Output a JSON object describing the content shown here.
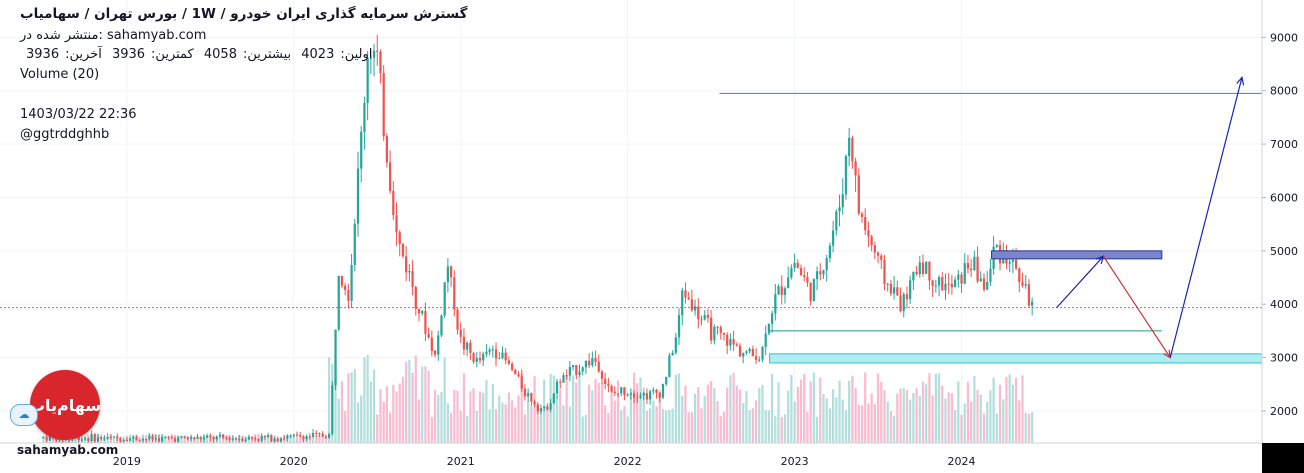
{
  "header": {
    "title": "گسترش سرمایه گذاری ایران خودرو / 1W / بورس تهران / سهامیاب",
    "published": "منتشر شده در: sahamyab.com",
    "ohlc": {
      "open_label": "اولین:",
      "open": "4023",
      "high_label": "بیشترین:",
      "high": "4058",
      "low_label": "کمترین:",
      "low": "3936",
      "close_label": "آخرین:",
      "close": "3936"
    },
    "volume_label": "Volume (20)",
    "timestamp": "1403/03/22 22:36",
    "user": "@ggtrddghhb"
  },
  "branding": {
    "logo_text": "سهام‌یاب",
    "watermark": "sahamyab.com"
  },
  "colors": {
    "up": "#26a69a",
    "down": "#ef5350",
    "up_volume": "#b2dfdb",
    "down_volume": "#f8bbd0",
    "annotation_line": "#1b9c85",
    "zone_blue": "#7986cb",
    "zone_cyan": "#b2ebf2",
    "arrow_blue": "#1a23b5",
    "arrow_red": "#d32f2f",
    "price_tag": "#ef5350"
  },
  "chart_data": {
    "type": "candlestick",
    "interval": "1W",
    "yaxis": {
      "ticks": [
        2000,
        3000,
        4000,
        5000,
        6000,
        7000,
        8000,
        9000
      ],
      "range": [
        1400,
        9700
      ],
      "side": "right"
    },
    "xaxis": {
      "ticks": [
        "2019",
        "2020",
        "2021",
        "2022",
        "2023",
        "2024"
      ],
      "tick_dates": [
        2019.0,
        2020.0,
        2021.0,
        2022.0,
        2023.0,
        2024.0
      ],
      "range": [
        2018.24,
        2025.8
      ]
    },
    "grid": true,
    "last_price": 3936,
    "series": [
      {
        "name": "price",
        "points": [
          {
            "x": 2018.5,
            "y": 1500
          },
          {
            "x": 2019.2,
            "y": 1480
          },
          {
            "x": 2019.9,
            "y": 1500
          },
          {
            "x": 2020.22,
            "y": 1550
          },
          {
            "x": 2020.23,
            "y": 2400
          },
          {
            "x": 2020.27,
            "y": 4800
          },
          {
            "x": 2020.33,
            "y": 4200
          },
          {
            "x": 2020.4,
            "y": 7000
          },
          {
            "x": 2020.45,
            "y": 9000
          },
          {
            "x": 2020.5,
            "y": 8500
          },
          {
            "x": 2020.55,
            "y": 7000
          },
          {
            "x": 2020.62,
            "y": 5200
          },
          {
            "x": 2020.7,
            "y": 4500
          },
          {
            "x": 2020.78,
            "y": 3600
          },
          {
            "x": 2020.85,
            "y": 3000
          },
          {
            "x": 2020.92,
            "y": 4800
          },
          {
            "x": 2021.0,
            "y": 3300
          },
          {
            "x": 2021.1,
            "y": 2900
          },
          {
            "x": 2021.2,
            "y": 3200
          },
          {
            "x": 2021.3,
            "y": 2800
          },
          {
            "x": 2021.4,
            "y": 2300
          },
          {
            "x": 2021.5,
            "y": 2000
          },
          {
            "x": 2021.6,
            "y": 2600
          },
          {
            "x": 2021.7,
            "y": 2800
          },
          {
            "x": 2021.8,
            "y": 3000
          },
          {
            "x": 2021.9,
            "y": 2300
          },
          {
            "x": 2022.0,
            "y": 2400
          },
          {
            "x": 2022.1,
            "y": 2300
          },
          {
            "x": 2022.2,
            "y": 2350
          },
          {
            "x": 2022.3,
            "y": 3500
          },
          {
            "x": 2022.33,
            "y": 4300
          },
          {
            "x": 2022.42,
            "y": 3800
          },
          {
            "x": 2022.5,
            "y": 3500
          },
          {
            "x": 2022.6,
            "y": 3300
          },
          {
            "x": 2022.7,
            "y": 3100
          },
          {
            "x": 2022.8,
            "y": 3000
          },
          {
            "x": 2022.83,
            "y": 3600
          },
          {
            "x": 2022.9,
            "y": 4200
          },
          {
            "x": 2023.0,
            "y": 4800
          },
          {
            "x": 2023.1,
            "y": 4200
          },
          {
            "x": 2023.2,
            "y": 5000
          },
          {
            "x": 2023.28,
            "y": 6000
          },
          {
            "x": 2023.33,
            "y": 7300
          },
          {
            "x": 2023.38,
            "y": 5800
          },
          {
            "x": 2023.45,
            "y": 5200
          },
          {
            "x": 2023.55,
            "y": 4400
          },
          {
            "x": 2023.65,
            "y": 4000
          },
          {
            "x": 2023.75,
            "y": 4800
          },
          {
            "x": 2023.85,
            "y": 4400
          },
          {
            "x": 2023.95,
            "y": 4300
          },
          {
            "x": 2024.05,
            "y": 4800
          },
          {
            "x": 2024.15,
            "y": 4300
          },
          {
            "x": 2024.2,
            "y": 5100
          },
          {
            "x": 2024.28,
            "y": 4900
          },
          {
            "x": 2024.35,
            "y": 4500
          },
          {
            "x": 2024.4,
            "y": 4100
          },
          {
            "x": 2024.44,
            "y": 3936
          }
        ]
      }
    ],
    "annotations": {
      "resistance_line": 7950,
      "support_line": 3500,
      "supply_zone": [
        4850,
        5000
      ],
      "demand_zone": [
        2900,
        3070
      ],
      "projection": [
        {
          "x": 2024.57,
          "y": 3936
        },
        {
          "x": 2024.85,
          "y": 4900
        },
        {
          "x": 2025.25,
          "y": 3000
        },
        {
          "x": 2025.68,
          "y": 8250
        }
      ]
    }
  }
}
